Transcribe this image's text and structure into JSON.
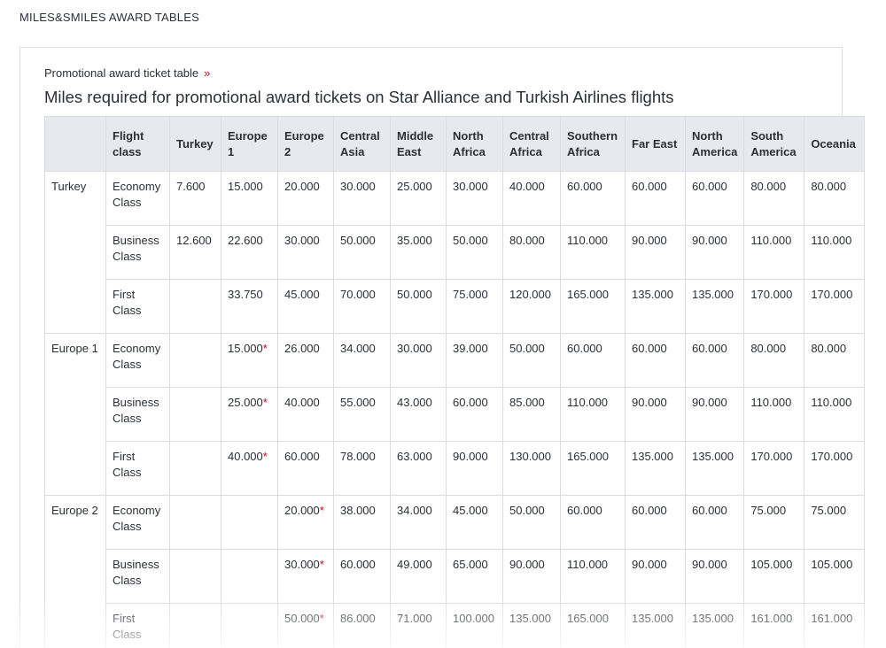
{
  "header": {
    "title": "MILES&SMILES AWARD TABLES"
  },
  "section": {
    "link": "Promotional award ticket table",
    "link_arrow": "»",
    "heading": "Miles required for promotional award tickets on Star Alliance and Turkish Airlines flights"
  },
  "table": {
    "columns": [
      "Flight class",
      "Turkey",
      "Europe 1",
      "Europe 2",
      "Central Asia",
      "Middle East",
      "North Africa",
      "Central Africa",
      "Southern Africa",
      "Far East",
      "North America",
      "South America",
      "Oceania"
    ],
    "groups": [
      {
        "origin": "Turkey",
        "rows": [
          {
            "class": "Economy Class",
            "cells": [
              "7.600",
              "15.000",
              "20.000",
              "30.000",
              "25.000",
              "30.000",
              "40.000",
              "60.000",
              "60.000",
              "60.000",
              "80.000",
              "80.000"
            ]
          },
          {
            "class": "Business Class",
            "cells": [
              "12.600",
              "22.600",
              "30.000",
              "50.000",
              "35.000",
              "50.000",
              "80.000",
              "110.000",
              "90.000",
              "90.000",
              "110.000",
              "110.000"
            ]
          },
          {
            "class": "First Class",
            "cells": [
              null,
              "33.750",
              "45.000",
              "70.000",
              "50.000",
              "75.000",
              "120.000",
              "165.000",
              "135.000",
              "135.000",
              "170.000",
              "170.000"
            ]
          }
        ]
      },
      {
        "origin": "Europe 1",
        "rows": [
          {
            "class": "Economy Class",
            "cells": [
              null,
              {
                "text": "15.000",
                "mark": "*"
              },
              "26.000",
              "34.000",
              "30.000",
              "39.000",
              "50.000",
              "60.000",
              "60.000",
              "60.000",
              "80.000",
              "80.000"
            ]
          },
          {
            "class": "Business Class",
            "cells": [
              null,
              {
                "text": "25.000",
                "mark": "*"
              },
              "40.000",
              "55.000",
              "43.000",
              "60.000",
              "85.000",
              "110.000",
              "90.000",
              "90.000",
              "110.000",
              "110.000"
            ]
          },
          {
            "class": "First Class",
            "cells": [
              null,
              {
                "text": "40.000",
                "mark": "*"
              },
              "60.000",
              "78.000",
              "63.000",
              "90.000",
              "130.000",
              "165.000",
              "135.000",
              "135.000",
              "170.000",
              "170.000"
            ]
          }
        ]
      },
      {
        "origin": "Europe 2",
        "rows": [
          {
            "class": "Economy Class",
            "cells": [
              null,
              null,
              {
                "text": "20.000",
                "mark": "*"
              },
              "38.000",
              "34.000",
              "45.000",
              "50.000",
              "60.000",
              "60.000",
              "60.000",
              "75.000",
              "75.000"
            ]
          },
          {
            "class": "Business Class",
            "cells": [
              null,
              null,
              {
                "text": "30.000",
                "mark": "*"
              },
              "60.000",
              "49.000",
              "65.000",
              "90.000",
              "110.000",
              "90.000",
              "90.000",
              "105.000",
              "105.000"
            ]
          },
          {
            "class": "First Class",
            "cells": [
              null,
              null,
              {
                "text": "50.000",
                "mark": "*"
              },
              "86.000",
              "71.000",
              "100.000",
              "135.000",
              "165.000",
              "135.000",
              "135.000",
              "161.000",
              "161.000"
            ]
          }
        ]
      }
    ]
  }
}
